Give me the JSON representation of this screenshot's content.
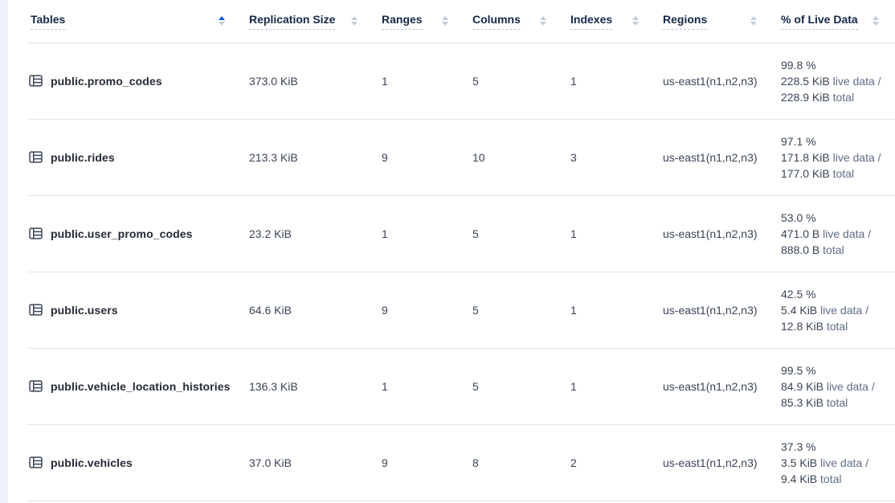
{
  "colors": {
    "sort_active": "#0055ff",
    "sort_inactive": "#c3cbdb",
    "header_text": "#152849",
    "row_separator": "#e0e6ed",
    "cell_text": "#394455",
    "muted_text": "#5f6c87"
  },
  "table": {
    "columns": [
      {
        "label": "Tables",
        "sort": "asc"
      },
      {
        "label": "Replication Size",
        "sort": "none"
      },
      {
        "label": "Ranges",
        "sort": "none"
      },
      {
        "label": "Columns",
        "sort": "none"
      },
      {
        "label": "Indexes",
        "sort": "none"
      },
      {
        "label": "Regions",
        "sort": "none"
      },
      {
        "label": "% of Live Data",
        "sort": "none"
      }
    ],
    "rows": [
      {
        "name": "public.promo_codes",
        "replication_size": "373.0 KiB",
        "ranges": "1",
        "columns": "5",
        "indexes": "1",
        "regions": "us-east1(n1,n2,n3)",
        "live_percent": "99.8 %",
        "live_size": "228.5 KiB",
        "live_suffix": "live data /",
        "total_size": "228.9 KiB",
        "total_suffix": "total"
      },
      {
        "name": "public.rides",
        "replication_size": "213.3 KiB",
        "ranges": "9",
        "columns": "10",
        "indexes": "3",
        "regions": "us-east1(n1,n2,n3)",
        "live_percent": "97.1 %",
        "live_size": "171.8 KiB",
        "live_suffix": "live data /",
        "total_size": "177.0 KiB",
        "total_suffix": "total"
      },
      {
        "name": "public.user_promo_codes",
        "replication_size": "23.2 KiB",
        "ranges": "1",
        "columns": "5",
        "indexes": "1",
        "regions": "us-east1(n1,n2,n3)",
        "live_percent": "53.0 %",
        "live_size": "471.0 B",
        "live_suffix": "live data /",
        "total_size": "888.0 B",
        "total_suffix": "total"
      },
      {
        "name": "public.users",
        "replication_size": "64.6 KiB",
        "ranges": "9",
        "columns": "5",
        "indexes": "1",
        "regions": "us-east1(n1,n2,n3)",
        "live_percent": "42.5 %",
        "live_size": "5.4 KiB",
        "live_suffix": "live data /",
        "total_size": "12.8 KiB",
        "total_suffix": "total"
      },
      {
        "name": "public.vehicle_location_histories",
        "replication_size": "136.3 KiB",
        "ranges": "1",
        "columns": "5",
        "indexes": "1",
        "regions": "us-east1(n1,n2,n3)",
        "live_percent": "99.5 %",
        "live_size": "84.9 KiB",
        "live_suffix": "live data /",
        "total_size": "85.3 KiB",
        "total_suffix": "total"
      },
      {
        "name": "public.vehicles",
        "replication_size": "37.0 KiB",
        "ranges": "9",
        "columns": "8",
        "indexes": "2",
        "regions": "us-east1(n1,n2,n3)",
        "live_percent": "37.3 %",
        "live_size": "3.5 KiB",
        "live_suffix": "live data /",
        "total_size": "9.4 KiB",
        "total_suffix": "total"
      }
    ]
  }
}
